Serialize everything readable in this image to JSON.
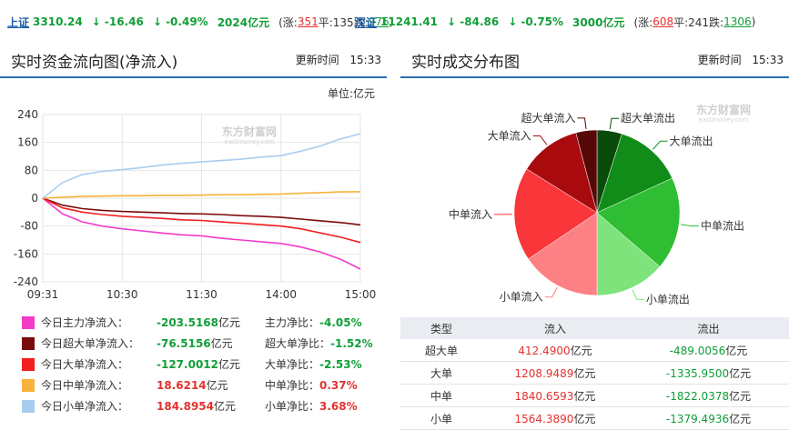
{
  "ticker": {
    "sh": {
      "name": "上证",
      "price": "3310.24",
      "change": "↓ -16.46",
      "pct": "↓ -0.49%",
      "amount": "2024亿元",
      "rise_prefix": "(涨:",
      "rise": "351",
      "flat_text": " 平:135 ",
      "fall_prefix": "跌:",
      "fall": "976",
      "close": ")"
    },
    "sz": {
      "name": "深证",
      "price": "11241.41",
      "change": "↓ -84.86",
      "pct": "↓ -0.75%",
      "amount": "3000亿元",
      "rise_prefix": "(涨:",
      "rise": "608",
      "flat_text": " 平:241 ",
      "fall_prefix": "跌:",
      "fall": "1306",
      "close": ")"
    }
  },
  "left_panel": {
    "title": "实时资金流向图(净流入)",
    "time_label": "更新时间",
    "time": "15:33",
    "unit": "单位:亿元"
  },
  "right_panel": {
    "title": "实时成交分布图",
    "time_label": "更新时间",
    "time": "15:33"
  },
  "legend": [
    {
      "color": "#f23cc8",
      "name": "今日主力净流入：",
      "value": "-203.5168",
      "unit": "亿元",
      "ratio_label": "主力净比：",
      "ratio": "-4.05%"
    },
    {
      "color": "#7a0a0a",
      "name": "今日超大单净流入：",
      "value": "-76.5156",
      "unit": "亿元",
      "ratio_label": "超大单净比：",
      "ratio": "-1.52%"
    },
    {
      "color": "#f11f1f",
      "name": "今日大单净流入：",
      "value": "-127.0012",
      "unit": "亿元",
      "ratio_label": "大单净比：",
      "ratio": "-2.53%"
    },
    {
      "color": "#f7b23b",
      "name": "今日中单净流入：",
      "value": "18.6214",
      "unit": "亿元",
      "ratio_label": "中单净比：",
      "ratio": "0.37%"
    },
    {
      "color": "#a9cdef",
      "name": "今日小单净流入：",
      "value": "184.8954",
      "unit": "亿元",
      "ratio_label": "小单净比：",
      "ratio": "3.68%"
    }
  ],
  "table": {
    "headers": [
      "类型",
      "流入",
      "流出"
    ],
    "rows": [
      {
        "type": "超大单",
        "in": "412.4900",
        "out": "-489.0056"
      },
      {
        "type": "大单",
        "in": "1208.9489",
        "out": "-1335.9500"
      },
      {
        "type": "中单",
        "in": "1840.6593",
        "out": "-1822.0378"
      },
      {
        "type": "小单",
        "in": "1564.3890",
        "out": "-1379.4936"
      }
    ],
    "unit": "亿元"
  },
  "chart_data": [
    {
      "type": "line",
      "title": "",
      "xlabel": "",
      "ylabel": "",
      "x_ticks": [
        "09:31",
        "10:30",
        "11:30",
        "14:00",
        "15:00"
      ],
      "y_ticks": [
        "240",
        "160",
        "80",
        "0",
        "-80",
        "-160",
        "-240"
      ],
      "ylim": [
        -240,
        240
      ],
      "grid": true,
      "watermark": "东方财富网",
      "watermark_sub": "eastmoney.com",
      "x": [
        "09:31",
        "09:45",
        "10:00",
        "10:15",
        "10:30",
        "10:45",
        "11:00",
        "11:15",
        "11:30",
        "13:15",
        "13:30",
        "13:45",
        "14:00",
        "14:15",
        "14:30",
        "14:45",
        "15:00"
      ],
      "series": [
        {
          "name": "今日主力净流入",
          "color": "#f23cc8",
          "values": [
            0,
            -45,
            -68,
            -80,
            -88,
            -94,
            -100,
            -105,
            -108,
            -115,
            -120,
            -125,
            -130,
            -140,
            -155,
            -175,
            -203.5
          ]
        },
        {
          "name": "今日超大单净流入",
          "color": "#7a0a0a",
          "values": [
            0,
            -20,
            -30,
            -35,
            -38,
            -40,
            -42,
            -44,
            -45,
            -47,
            -50,
            -52,
            -55,
            -60,
            -65,
            -70,
            -76.5
          ]
        },
        {
          "name": "今日大单净流入",
          "color": "#f11f1f",
          "values": [
            0,
            -28,
            -40,
            -47,
            -52,
            -55,
            -58,
            -62,
            -64,
            -68,
            -72,
            -76,
            -80,
            -88,
            -100,
            -112,
            -127.0
          ]
        },
        {
          "name": "今日中单净流入",
          "color": "#f7b23b",
          "values": [
            0,
            3,
            5,
            6,
            7,
            7,
            8,
            8,
            9,
            10,
            10,
            11,
            12,
            14,
            16,
            18,
            18.6
          ]
        },
        {
          "name": "今日小单净流入",
          "color": "#a9cdef",
          "values": [
            0,
            45,
            68,
            77,
            82,
            88,
            95,
            100,
            104,
            108,
            112,
            118,
            122,
            135,
            150,
            170,
            184.9
          ]
        }
      ]
    },
    {
      "type": "pie",
      "watermark": "东方财富网",
      "watermark_sub": "eastmoney.com",
      "slices": [
        {
          "label": "超大单流出",
          "value": 489.0056,
          "color": "#0a4a0a"
        },
        {
          "label": "大单流出",
          "value": 1335.95,
          "color": "#118c18"
        },
        {
          "label": "中单流出",
          "value": 1822.0378,
          "color": "#2fbd33"
        },
        {
          "label": "小单流出",
          "value": 1379.4936,
          "color": "#7ee37b"
        },
        {
          "label": "小单流入",
          "value": 1564.389,
          "color": "#fd8085"
        },
        {
          "label": "中单流入",
          "value": 1840.6593,
          "color": "#f93639"
        },
        {
          "label": "大单流入",
          "value": 1208.9489,
          "color": "#a90a0e"
        },
        {
          "label": "超大单流入",
          "value": 412.49,
          "color": "#560807"
        }
      ]
    }
  ]
}
